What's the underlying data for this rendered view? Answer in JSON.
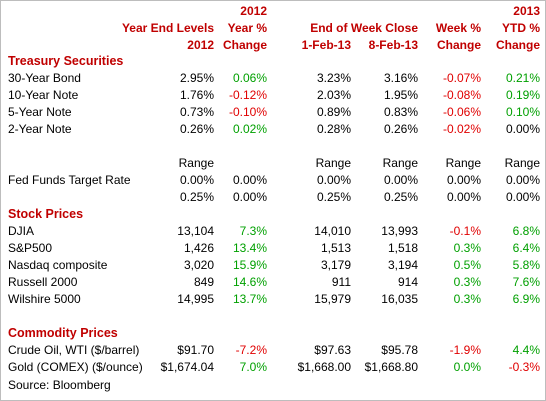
{
  "header": {
    "row1": {
      "c1": "",
      "c2": "2012",
      "c3": "",
      "c4": "",
      "c5": "",
      "c6": "2013"
    },
    "row2": {
      "c1": "Year End Levels",
      "c2": "Year %",
      "c3": "End of Week Close",
      "c4": "Week %",
      "c5": "YTD %"
    },
    "row3": {
      "c1": "2012",
      "c2": "Change",
      "c3": "1-Feb-13",
      "c4": "8-Feb-13",
      "c5": "Change",
      "c6": "Change"
    }
  },
  "sections": {
    "treasury": {
      "title": "Treasury Securities",
      "rows": [
        {
          "label": "30-Year Bond",
          "ye": "2.95%",
          "yc": "0.06%",
          "w1": "3.23%",
          "w2": "3.16%",
          "wk": "-0.07%",
          "ytd": "0.21%"
        },
        {
          "label": "10-Year Note",
          "ye": "1.76%",
          "yc": "-0.12%",
          "w1": "2.03%",
          "w2": "1.95%",
          "wk": "-0.08%",
          "ytd": "0.19%"
        },
        {
          "label": "5-Year Note",
          "ye": "0.73%",
          "yc": "-0.10%",
          "w1": "0.89%",
          "w2": "0.83%",
          "wk": "-0.06%",
          "ytd": "0.10%"
        },
        {
          "label": "2-Year Note",
          "ye": "0.26%",
          "yc": "0.02%",
          "w1": "0.28%",
          "w2": "0.26%",
          "wk": "-0.02%",
          "ytd": "0.00%"
        }
      ]
    },
    "fed": {
      "range_label": "Range",
      "label": "Fed Funds Target Rate",
      "low": {
        "ye": "0.00%",
        "yc": "0.00%",
        "w1": "0.00%",
        "w2": "0.00%",
        "wk": "0.00%",
        "ytd": "0.00%"
      },
      "high": {
        "ye": "0.25%",
        "yc": "0.00%",
        "w1": "0.25%",
        "w2": "0.25%",
        "wk": "0.00%",
        "ytd": "0.00%"
      }
    },
    "stocks": {
      "title": "Stock Prices",
      "rows": [
        {
          "label": "DJIA",
          "ye": "13,104",
          "yc": "7.3%",
          "w1": "14,010",
          "w2": "13,993",
          "wk": "-0.1%",
          "ytd": "6.8%"
        },
        {
          "label": "S&P500",
          "ye": "1,426",
          "yc": "13.4%",
          "w1": "1,513",
          "w2": "1,518",
          "wk": "0.3%",
          "ytd": "6.4%"
        },
        {
          "label": "Nasdaq composite",
          "ye": "3,020",
          "yc": "15.9%",
          "w1": "3,179",
          "w2": "3,194",
          "wk": "0.5%",
          "ytd": "5.8%"
        },
        {
          "label": "Russell 2000",
          "ye": "849",
          "yc": "14.6%",
          "w1": "911",
          "w2": "914",
          "wk": "0.3%",
          "ytd": "7.6%"
        },
        {
          "label": "Wilshire 5000",
          "ye": "14,995",
          "yc": "13.7%",
          "w1": "15,979",
          "w2": "16,035",
          "wk": "0.3%",
          "ytd": "6.9%"
        }
      ]
    },
    "commodities": {
      "title": "Commodity Prices",
      "rows": [
        {
          "label": "Crude Oil, WTI ($/barrel)",
          "ye": "$91.70",
          "yc": "-7.2%",
          "w1": "$97.63",
          "w2": "$95.78",
          "wk": "-1.9%",
          "ytd": "4.4%"
        },
        {
          "label": "Gold (COMEX) ($/ounce)",
          "ye": "$1,674.04",
          "yc": "7.0%",
          "w1": "$1,668.00",
          "w2": "$1,668.80",
          "wk": "0.0%",
          "ytd": "-0.3%"
        }
      ]
    }
  },
  "source": "Source: Bloomberg",
  "colors": {
    "header": "#c00000",
    "positive": "#00a000",
    "negative": "#e00000",
    "neutral": "#000000"
  }
}
